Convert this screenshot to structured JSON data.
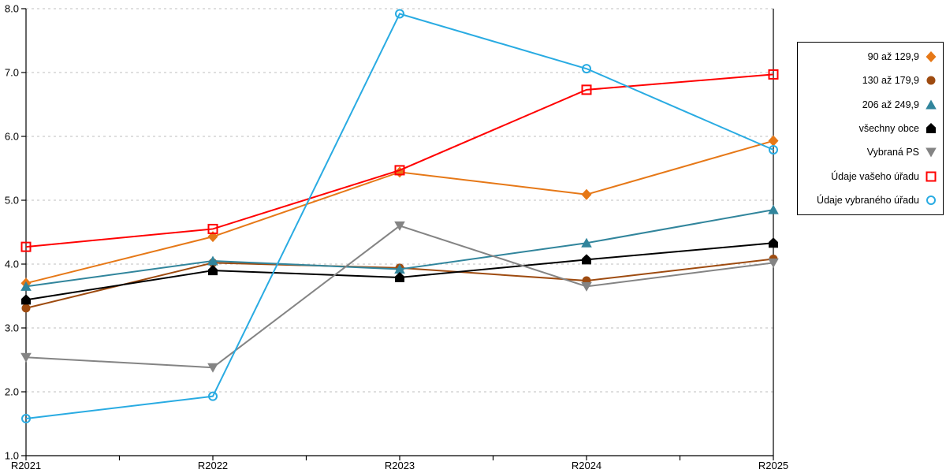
{
  "chart_data": {
    "type": "line",
    "title": "",
    "xlabel": "",
    "ylabel": "",
    "categories": [
      "R2021",
      "R2022",
      "R2023",
      "R2024",
      "R2025"
    ],
    "series": [
      {
        "name": "90 až 129,9",
        "marker": "diamond",
        "color": "#E67817",
        "values": [
          3.7,
          4.43,
          5.44,
          5.09,
          5.93
        ]
      },
      {
        "name": "130 až 179,9",
        "marker": "circle",
        "color": "#9E4B10",
        "values": [
          3.31,
          4.02,
          3.94,
          3.74,
          4.08
        ]
      },
      {
        "name": "206 až 249,9",
        "marker": "triangle-up",
        "color": "#31859C",
        "values": [
          3.65,
          4.05,
          3.92,
          4.33,
          4.85
        ]
      },
      {
        "name": "všechny obce",
        "marker": "pentagon",
        "color": "#000000",
        "values": [
          3.44,
          3.9,
          3.79,
          4.07,
          4.33
        ]
      },
      {
        "name": "Vybraná PS",
        "marker": "triangle-down",
        "color": "#848484",
        "values": [
          2.54,
          2.38,
          4.6,
          3.65,
          4.02
        ]
      },
      {
        "name": "Údaje vašeho úřadu",
        "marker": "square-open",
        "color": "#FF0000",
        "values": [
          4.27,
          4.55,
          5.47,
          6.73,
          6.97
        ]
      },
      {
        "name": "Údaje vybraného úřadu",
        "marker": "circle-open",
        "color": "#29ABE2",
        "values": [
          1.58,
          1.93,
          7.92,
          7.06,
          5.79
        ]
      }
    ],
    "ylim": [
      1.0,
      8.0
    ],
    "ytick_values": [
      1,
      2,
      3,
      4,
      5,
      6,
      7,
      8
    ],
    "ytick_labels": [
      "1.0",
      "2.0",
      "3.0",
      "4.0",
      "5.0",
      "6.0",
      "7.0",
      "8.0"
    ],
    "grid": "horizontal-dashed",
    "gridline_color": "#BFBFBF",
    "axis_color": "#000000",
    "tick_label_color": "#000000",
    "legend_position": "right",
    "plot_background": "#FFFFFF"
  }
}
